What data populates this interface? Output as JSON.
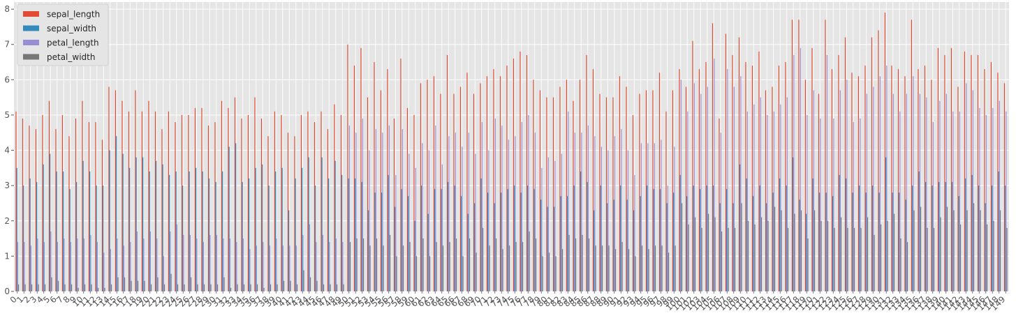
{
  "chart_data": {
    "type": "bar",
    "style": "ggplot",
    "ylim": [
      0,
      8.2
    ],
    "y_ticks": [
      0,
      1,
      2,
      3,
      4,
      5,
      6,
      7,
      8
    ],
    "grid": true,
    "legend_position": "top-left",
    "x_tick_rotation": 45,
    "series": [
      {
        "name": "sepal_length",
        "color": "#E24A33",
        "values": [
          5.1,
          4.9,
          4.7,
          4.6,
          5.0,
          5.4,
          4.6,
          5.0,
          4.4,
          4.9,
          5.4,
          4.8,
          4.8,
          4.3,
          5.8,
          5.7,
          5.4,
          5.1,
          5.7,
          5.1,
          5.4,
          5.1,
          4.6,
          5.1,
          4.8,
          5.0,
          5.0,
          5.2,
          5.2,
          4.7,
          4.8,
          5.4,
          5.2,
          5.5,
          4.9,
          5.0,
          5.5,
          4.9,
          4.4,
          5.1,
          5.0,
          4.5,
          4.4,
          5.0,
          5.1,
          4.8,
          5.1,
          4.6,
          5.3,
          5.0,
          7.0,
          6.4,
          6.9,
          5.5,
          6.5,
          5.7,
          6.3,
          4.9,
          6.6,
          5.2,
          5.0,
          5.9,
          6.0,
          6.1,
          5.6,
          6.7,
          5.6,
          5.8,
          6.2,
          5.6,
          5.9,
          6.1,
          6.3,
          6.1,
          6.4,
          6.6,
          6.8,
          6.7,
          6.0,
          5.7,
          5.5,
          5.5,
          5.8,
          6.0,
          5.4,
          6.0,
          6.7,
          6.3,
          5.6,
          5.5,
          5.5,
          6.1,
          5.8,
          5.0,
          5.6,
          5.7,
          5.7,
          6.2,
          5.1,
          5.7,
          6.3,
          5.8,
          7.1,
          6.3,
          6.5,
          7.6,
          4.9,
          7.3,
          6.7,
          7.2,
          6.5,
          6.4,
          6.8,
          5.7,
          5.8,
          6.4,
          6.5,
          7.7,
          7.7,
          6.0,
          6.9,
          5.6,
          7.7,
          6.3,
          6.7,
          7.2,
          6.2,
          6.1,
          6.4,
          7.2,
          7.4,
          7.9,
          6.4,
          6.3,
          6.1,
          7.7,
          6.3,
          6.4,
          6.0,
          6.9,
          6.7,
          6.9,
          5.8,
          6.8,
          6.7,
          6.7,
          6.3,
          6.5,
          6.2,
          5.9
        ]
      },
      {
        "name": "sepal_width",
        "color": "#348ABD",
        "values": [
          3.5,
          3.0,
          3.2,
          3.1,
          3.6,
          3.9,
          3.4,
          3.4,
          2.9,
          3.1,
          3.7,
          3.4,
          3.0,
          3.0,
          4.0,
          4.4,
          3.9,
          3.5,
          3.8,
          3.8,
          3.4,
          3.7,
          3.6,
          3.3,
          3.4,
          3.0,
          3.4,
          3.5,
          3.4,
          3.2,
          3.1,
          3.4,
          4.1,
          4.2,
          3.1,
          3.2,
          3.5,
          3.6,
          3.0,
          3.4,
          3.5,
          2.3,
          3.2,
          3.5,
          3.8,
          3.0,
          3.8,
          3.2,
          3.7,
          3.3,
          3.2,
          3.2,
          3.1,
          2.3,
          2.8,
          2.8,
          3.3,
          2.4,
          2.9,
          2.7,
          2.0,
          3.0,
          2.2,
          2.9,
          2.9,
          3.1,
          3.0,
          2.7,
          2.2,
          2.5,
          3.2,
          2.8,
          2.5,
          2.8,
          2.9,
          3.0,
          2.8,
          3.0,
          2.9,
          2.6,
          2.4,
          2.4,
          2.7,
          2.7,
          3.0,
          3.4,
          3.1,
          2.3,
          3.0,
          2.5,
          2.6,
          3.0,
          2.6,
          2.3,
          2.7,
          3.0,
          2.9,
          2.9,
          2.5,
          2.8,
          3.3,
          2.7,
          3.0,
          2.9,
          3.0,
          3.0,
          2.5,
          2.9,
          2.5,
          3.6,
          3.2,
          2.7,
          3.0,
          2.5,
          2.8,
          3.2,
          3.0,
          3.8,
          2.6,
          2.2,
          3.2,
          2.8,
          2.8,
          2.7,
          3.3,
          3.2,
          2.8,
          3.0,
          2.8,
          3.0,
          2.8,
          3.8,
          2.8,
          2.8,
          2.6,
          3.0,
          3.4,
          3.1,
          3.0,
          3.1,
          3.1,
          3.1,
          2.7,
          3.2,
          3.3,
          3.0,
          2.5,
          3.0,
          3.4,
          3.0
        ]
      },
      {
        "name": "petal_length",
        "color": "#988ED5",
        "values": [
          1.4,
          1.4,
          1.3,
          1.5,
          1.4,
          1.7,
          1.4,
          1.5,
          1.4,
          1.5,
          1.5,
          1.6,
          1.4,
          1.1,
          1.2,
          1.5,
          1.3,
          1.4,
          1.7,
          1.5,
          1.7,
          1.5,
          1.0,
          1.7,
          1.9,
          1.6,
          1.6,
          1.5,
          1.4,
          1.6,
          1.6,
          1.5,
          1.5,
          1.4,
          1.5,
          1.2,
          1.3,
          1.4,
          1.3,
          1.5,
          1.3,
          1.3,
          1.3,
          1.6,
          1.9,
          1.4,
          1.6,
          1.4,
          1.5,
          1.4,
          4.7,
          4.5,
          4.9,
          4.0,
          4.6,
          4.5,
          4.7,
          3.3,
          4.6,
          3.9,
          3.5,
          4.2,
          4.0,
          4.7,
          3.6,
          4.4,
          4.5,
          4.1,
          4.5,
          3.9,
          4.8,
          4.0,
          4.9,
          4.7,
          4.3,
          4.4,
          4.8,
          5.0,
          4.5,
          3.5,
          3.8,
          3.7,
          3.9,
          5.1,
          4.5,
          4.5,
          4.7,
          4.4,
          4.1,
          4.0,
          4.4,
          4.6,
          4.0,
          3.3,
          4.2,
          4.2,
          4.2,
          4.3,
          3.0,
          4.1,
          6.0,
          5.1,
          5.9,
          5.6,
          5.8,
          6.6,
          4.5,
          6.3,
          5.8,
          6.1,
          5.1,
          5.3,
          5.5,
          5.0,
          5.1,
          5.3,
          5.5,
          6.7,
          6.9,
          5.0,
          5.7,
          4.9,
          6.7,
          4.9,
          5.7,
          6.0,
          4.8,
          4.9,
          5.6,
          5.8,
          6.1,
          6.4,
          5.6,
          5.1,
          5.6,
          6.1,
          5.6,
          5.5,
          4.8,
          5.4,
          5.6,
          5.1,
          5.1,
          5.9,
          5.7,
          5.2,
          5.0,
          5.2,
          5.4,
          5.1
        ]
      },
      {
        "name": "petal_width",
        "color": "#777777",
        "values": [
          0.2,
          0.2,
          0.2,
          0.2,
          0.2,
          0.4,
          0.3,
          0.2,
          0.2,
          0.1,
          0.2,
          0.2,
          0.1,
          0.1,
          0.2,
          0.4,
          0.4,
          0.3,
          0.3,
          0.3,
          0.2,
          0.4,
          0.2,
          0.5,
          0.2,
          0.2,
          0.4,
          0.2,
          0.2,
          0.2,
          0.2,
          0.4,
          0.1,
          0.2,
          0.2,
          0.2,
          0.2,
          0.1,
          0.2,
          0.2,
          0.3,
          0.3,
          0.2,
          0.6,
          0.4,
          0.3,
          0.2,
          0.2,
          0.2,
          0.2,
          1.4,
          1.5,
          1.5,
          1.3,
          1.5,
          1.3,
          1.6,
          1.0,
          1.3,
          1.4,
          1.0,
          1.5,
          1.0,
          1.4,
          1.3,
          1.4,
          1.5,
          1.0,
          1.5,
          1.1,
          1.8,
          1.3,
          1.5,
          1.2,
          1.3,
          1.4,
          1.4,
          1.7,
          1.5,
          1.0,
          1.1,
          1.0,
          1.2,
          1.6,
          1.5,
          1.6,
          1.5,
          1.3,
          1.3,
          1.3,
          1.2,
          1.4,
          1.2,
          1.0,
          1.3,
          1.2,
          1.3,
          1.3,
          1.1,
          1.3,
          2.5,
          1.9,
          2.1,
          1.8,
          2.2,
          2.1,
          1.7,
          1.8,
          1.8,
          2.5,
          2.0,
          1.9,
          2.1,
          2.0,
          2.4,
          2.3,
          1.8,
          2.2,
          2.3,
          1.5,
          2.3,
          2.0,
          2.0,
          1.8,
          2.1,
          1.8,
          1.8,
          1.8,
          2.1,
          1.6,
          1.9,
          2.0,
          2.2,
          1.5,
          1.4,
          2.3,
          2.4,
          1.8,
          1.8,
          2.1,
          2.4,
          2.3,
          1.9,
          2.3,
          2.5,
          2.3,
          1.9,
          2.0,
          2.3,
          1.8
        ]
      }
    ]
  }
}
